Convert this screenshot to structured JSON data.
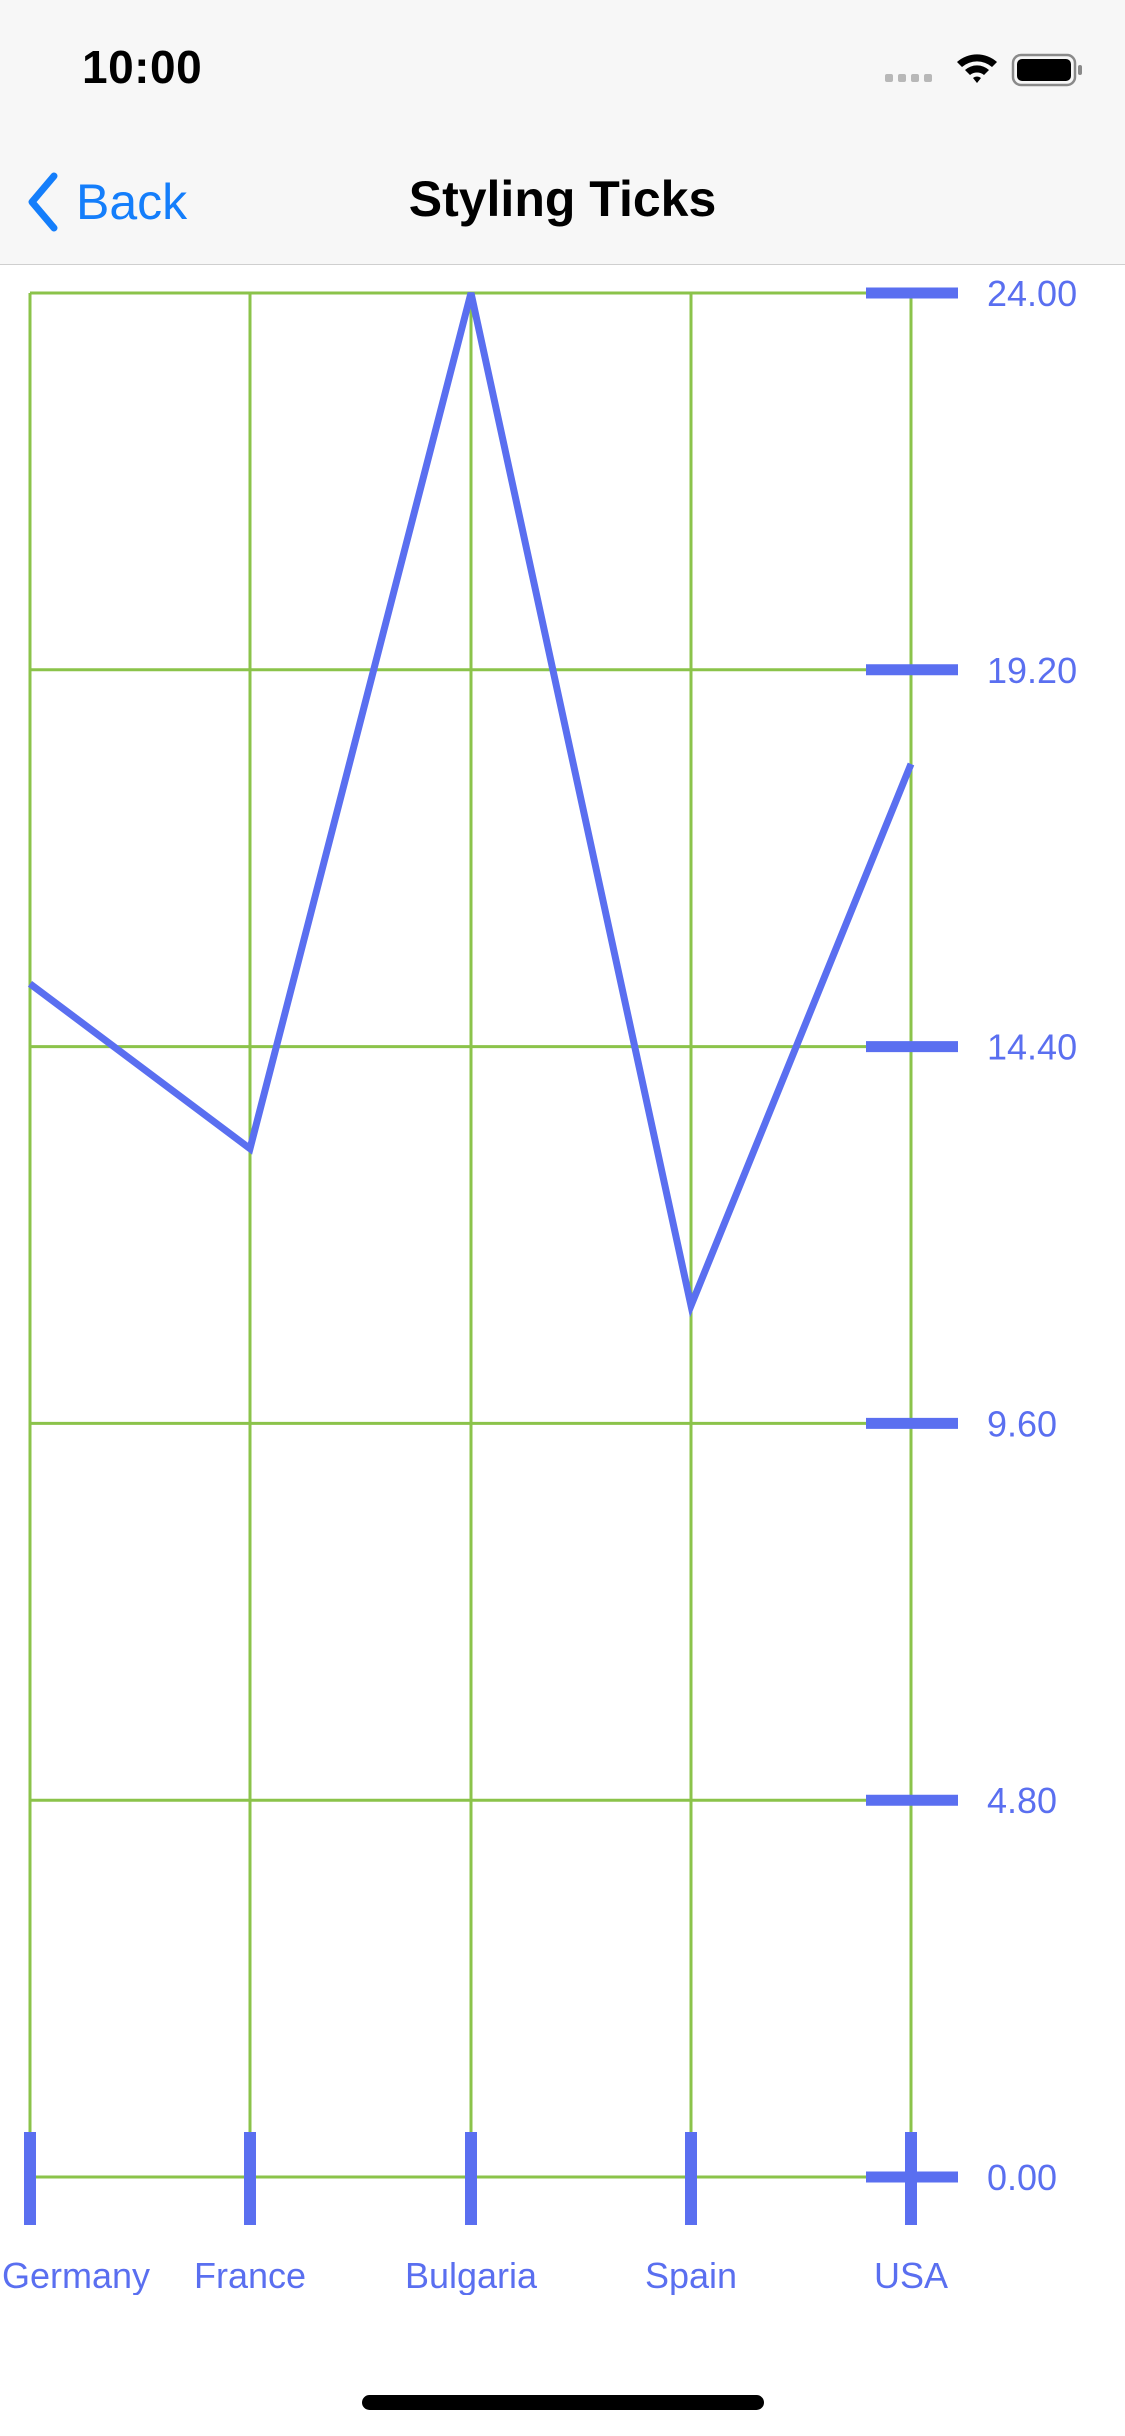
{
  "status_bar": {
    "time": "10:00"
  },
  "nav": {
    "back_label": "Back",
    "title": "Styling Ticks"
  },
  "colors": {
    "grid": "#8bc34a",
    "series": "#5a6ff0",
    "accent": "#147efb"
  },
  "chart_data": {
    "type": "line",
    "categories": [
      "Germany",
      "France",
      "Bulgaria",
      "Spain",
      "USA"
    ],
    "series": [
      {
        "values": [
          15.2,
          13.1,
          24.0,
          11.1,
          18.0
        ]
      }
    ],
    "ylim": [
      0,
      24
    ],
    "yticks": [
      "0.00",
      "4.80",
      "9.60",
      "14.40",
      "19.20",
      "24.00"
    ],
    "grid": true,
    "y_axis_position": "right"
  }
}
